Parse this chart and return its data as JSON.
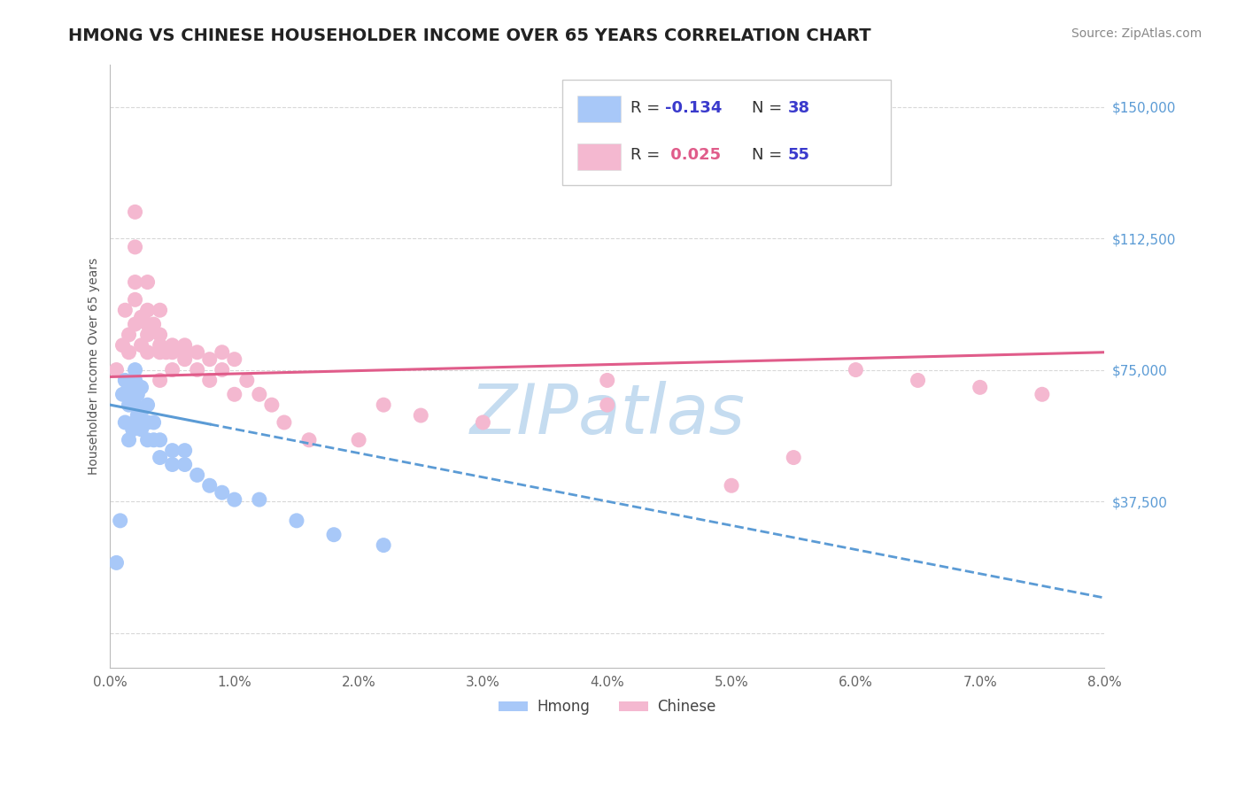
{
  "title": "HMONG VS CHINESE HOUSEHOLDER INCOME OVER 65 YEARS CORRELATION CHART",
  "source": "Source: ZipAtlas.com",
  "ylabel": "Householder Income Over 65 years",
  "xlim": [
    0.0,
    0.08
  ],
  "ylim": [
    -10000,
    162000
  ],
  "yticks": [
    0,
    37500,
    75000,
    112500,
    150000
  ],
  "ytick_labels": [
    "",
    "$37,500",
    "$75,000",
    "$112,500",
    "$150,000"
  ],
  "xticks": [
    0.0,
    0.01,
    0.02,
    0.03,
    0.04,
    0.05,
    0.06,
    0.07,
    0.08
  ],
  "xtick_labels": [
    "0.0%",
    "1.0%",
    "2.0%",
    "3.0%",
    "4.0%",
    "5.0%",
    "6.0%",
    "7.0%",
    "8.0%"
  ],
  "hmong_color": "#a8c8f8",
  "chinese_color": "#f4b8d0",
  "hmong_R": -0.134,
  "hmong_N": 38,
  "chinese_R": 0.025,
  "chinese_N": 55,
  "hmong_line_color": "#5b9bd5",
  "chinese_line_color": "#e05c8a",
  "background_color": "#ffffff",
  "grid_color": "#d8d8d8",
  "title_color": "#222222",
  "watermark": "ZIPatlas",
  "watermark_color": "#c5dcf0",
  "legend_R_color": "#3a3acc",
  "legend_N_color": "#3a3acc",
  "ytick_color": "#5b9bd5",
  "xtick_color": "#666666",
  "hmong_x": [
    0.0005,
    0.0008,
    0.001,
    0.0012,
    0.0012,
    0.0015,
    0.0015,
    0.0015,
    0.0018,
    0.002,
    0.002,
    0.002,
    0.002,
    0.002,
    0.0022,
    0.0022,
    0.0025,
    0.0025,
    0.0025,
    0.003,
    0.003,
    0.003,
    0.0035,
    0.0035,
    0.004,
    0.004,
    0.005,
    0.005,
    0.006,
    0.006,
    0.007,
    0.008,
    0.009,
    0.01,
    0.012,
    0.015,
    0.018,
    0.022
  ],
  "hmong_y": [
    20000,
    32000,
    68000,
    60000,
    72000,
    55000,
    65000,
    70000,
    58000,
    60000,
    65000,
    68000,
    72000,
    75000,
    62000,
    68000,
    58000,
    63000,
    70000,
    55000,
    60000,
    65000,
    55000,
    60000,
    50000,
    55000,
    48000,
    52000,
    48000,
    52000,
    45000,
    42000,
    40000,
    38000,
    38000,
    32000,
    28000,
    25000
  ],
  "chinese_x": [
    0.0005,
    0.001,
    0.0012,
    0.0015,
    0.0015,
    0.002,
    0.002,
    0.002,
    0.002,
    0.002,
    0.0025,
    0.0025,
    0.003,
    0.003,
    0.003,
    0.003,
    0.003,
    0.0035,
    0.004,
    0.004,
    0.004,
    0.004,
    0.004,
    0.0045,
    0.005,
    0.005,
    0.005,
    0.006,
    0.006,
    0.006,
    0.007,
    0.007,
    0.008,
    0.008,
    0.009,
    0.009,
    0.01,
    0.01,
    0.011,
    0.012,
    0.013,
    0.014,
    0.016,
    0.02,
    0.022,
    0.025,
    0.03,
    0.04,
    0.04,
    0.05,
    0.055,
    0.06,
    0.065,
    0.07,
    0.075
  ],
  "chinese_y": [
    75000,
    82000,
    92000,
    80000,
    85000,
    88000,
    95000,
    100000,
    110000,
    120000,
    82000,
    90000,
    80000,
    85000,
    88000,
    92000,
    100000,
    88000,
    72000,
    80000,
    82000,
    85000,
    92000,
    80000,
    75000,
    80000,
    82000,
    80000,
    78000,
    82000,
    75000,
    80000,
    78000,
    72000,
    75000,
    80000,
    78000,
    68000,
    72000,
    68000,
    65000,
    60000,
    55000,
    55000,
    65000,
    62000,
    60000,
    65000,
    72000,
    42000,
    50000,
    75000,
    72000,
    70000,
    68000
  ]
}
